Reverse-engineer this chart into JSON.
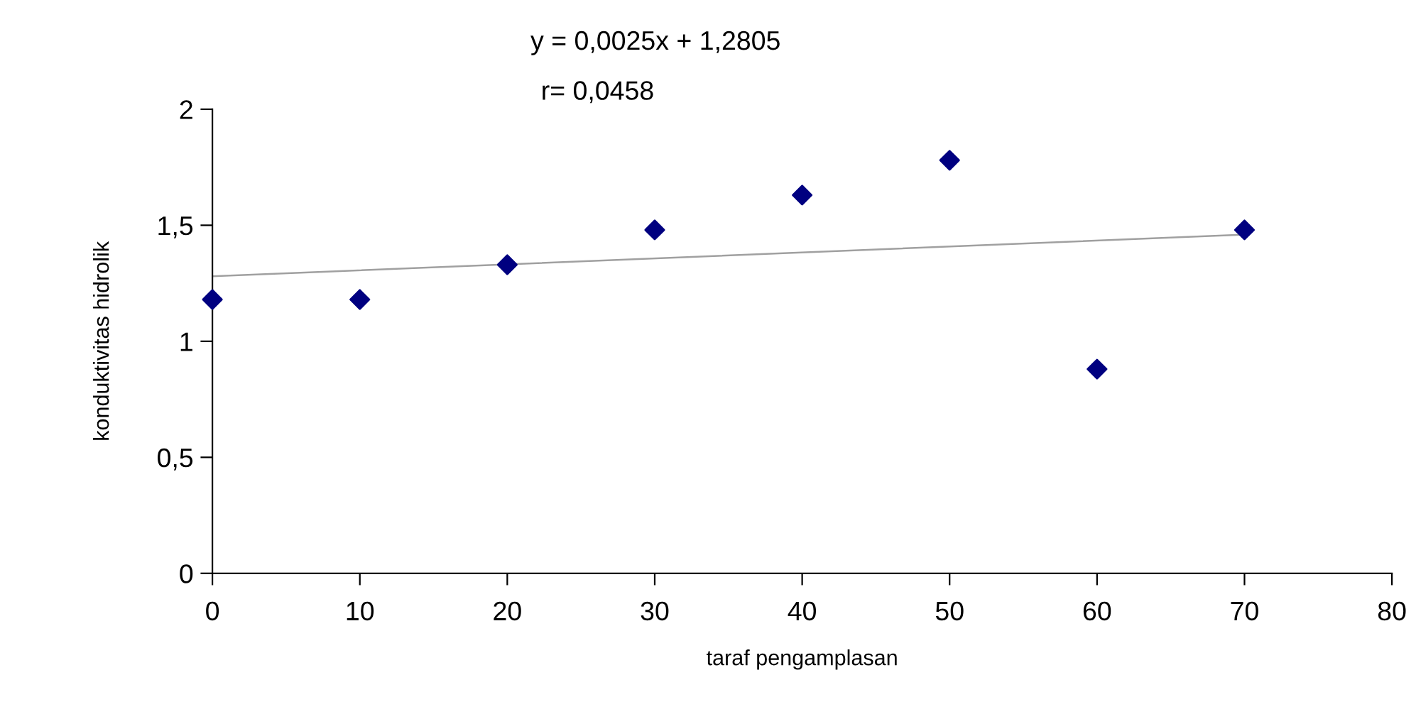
{
  "chart_data": {
    "type": "scatter",
    "xlabel": "taraf pengamplasan",
    "ylabel": "konduktivitas hidrolik",
    "annotations": [
      "y = 0,0025x + 1,2805",
      "r= 0,0458"
    ],
    "x": [
      0,
      10,
      20,
      30,
      40,
      50,
      60,
      70
    ],
    "series": [
      {
        "color": "#000080",
        "marker": "diamond",
        "values": [
          1.18,
          1.18,
          1.33,
          1.48,
          1.63,
          1.78,
          0.88,
          1.48
        ]
      },
      {
        "type": "line",
        "color": "#a0a0a0",
        "marker": "none",
        "line_style": "solid",
        "x": [
          0,
          70
        ],
        "values": [
          1.28,
          1.46
        ]
      }
    ],
    "xlim": [
      0,
      80
    ],
    "xticks": [
      0,
      10,
      20,
      30,
      40,
      50,
      60,
      70,
      80
    ],
    "ylim": [
      0,
      2
    ],
    "yticks": [
      0,
      {
        "value": 0.5,
        "label": "0,5"
      },
      1,
      {
        "value": 1.5,
        "label": "1,5"
      },
      2
    ],
    "grid": false,
    "legend": false
  }
}
